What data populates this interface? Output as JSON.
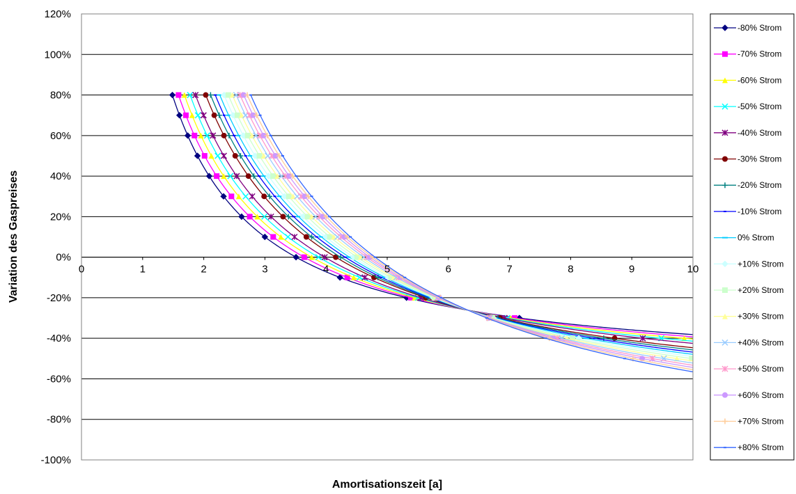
{
  "chart_data": {
    "type": "line",
    "title": "",
    "xlabel": "Amortisationszeit [a]",
    "ylabel": "Variation des Gaspreises",
    "xlim": [
      0,
      10
    ],
    "ylim": [
      -100,
      120
    ],
    "x_ticks": [
      "0",
      "1",
      "2",
      "3",
      "4",
      "5",
      "6",
      "7",
      "8",
      "9",
      "10"
    ],
    "y_ticks": [
      "-100%",
      "-80%",
      "-60%",
      "-40%",
      "-20%",
      "0%",
      "20%",
      "40%",
      "60%",
      "80%",
      "100%",
      "120%"
    ],
    "grid": "horizontal",
    "legend_position": "right",
    "series": [
      {
        "name": "-80% Strom",
        "color": "#000080",
        "marker": "diamond",
        "a": 2.064,
        "b": 0.4118
      },
      {
        "name": "-70% Strom",
        "color": "#ff00ff",
        "marker": "square",
        "a": 2.25,
        "b": 0.3824
      },
      {
        "name": "-60% Strom",
        "color": "#ffff00",
        "marker": "triangle",
        "a": 2.436,
        "b": 0.3529
      },
      {
        "name": "-50% Strom",
        "color": "#00ffff",
        "marker": "x",
        "a": 2.622,
        "b": 0.3235
      },
      {
        "name": "-40% Strom",
        "color": "#800080",
        "marker": "star",
        "a": 2.808,
        "b": 0.2941
      },
      {
        "name": "-30% Strom",
        "color": "#800000",
        "marker": "circle",
        "a": 3.18,
        "b": 0.2353
      },
      {
        "name": "-20% Strom",
        "color": "#008080",
        "marker": "plus",
        "a": 3.366,
        "b": 0.2059
      },
      {
        "name": "-10% Strom",
        "color": "#0000ff",
        "marker": "dash",
        "a": 3.552,
        "b": 0.1765
      },
      {
        "name": "0% Strom",
        "color": "#00ccff",
        "marker": "longdash",
        "a": 3.738,
        "b": 0.1471
      },
      {
        "name": "+10% Strom",
        "color": "#ccffff",
        "marker": "diamond",
        "a": 3.924,
        "b": 0.1176
      },
      {
        "name": "+20% Strom",
        "color": "#ccffcc",
        "marker": "square",
        "a": 4.11,
        "b": 0.0882
      },
      {
        "name": "+30% Strom",
        "color": "#ffff99",
        "marker": "triangle",
        "a": 4.296,
        "b": 0.0588
      },
      {
        "name": "+40% Strom",
        "color": "#99ccff",
        "marker": "x",
        "a": 4.482,
        "b": 0.0294
      },
      {
        "name": "+50% Strom",
        "color": "#ff99cc",
        "marker": "star",
        "a": 4.668,
        "b": 0.0
      },
      {
        "name": "+60% Strom",
        "color": "#cc99ff",
        "marker": "circle",
        "a": 4.854,
        "b": -0.0294
      },
      {
        "name": "+70% Strom",
        "color": "#ffcc99",
        "marker": "plus",
        "a": 5.04,
        "b": -0.0588
      },
      {
        "name": "+80% Strom",
        "color": "#3366ff",
        "marker": "dash",
        "a": 5.226,
        "b": -0.0882
      }
    ]
  }
}
